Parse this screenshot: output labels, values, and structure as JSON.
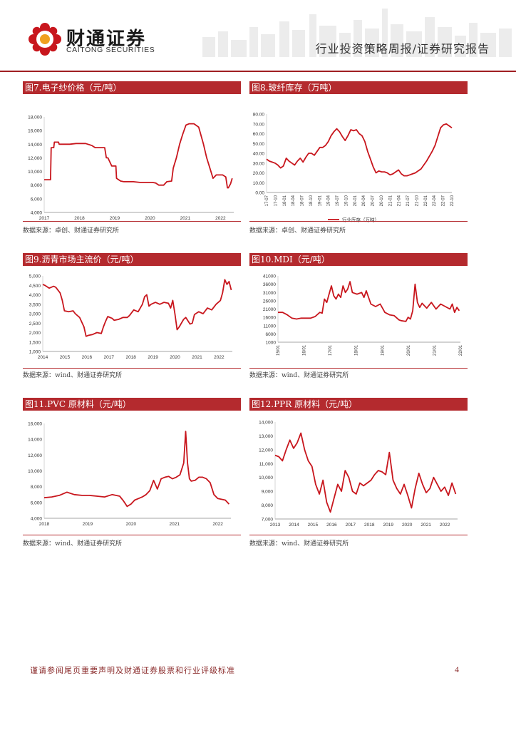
{
  "header": {
    "brand_cn": "财通证券",
    "brand_en": "CAITONG SECURITIES",
    "report_type": "行业投资策略周报/证券研究报告"
  },
  "colors": {
    "accent": "#b42a2e",
    "line": "#c8161d",
    "grid": "#d9d9d9"
  },
  "panels": [
    {
      "title": "图7.电子纱价格（元/吨）",
      "source": "数据来源：卓创、财通证券研究所",
      "chart_data": {
        "type": "line",
        "title": "图7.电子纱价格（元/吨）",
        "x": [
          2017.0,
          2017.2,
          2017.22,
          2017.3,
          2017.32,
          2017.45,
          2017.47,
          2017.6,
          2017.8,
          2018.0,
          2018.3,
          2018.5,
          2018.6,
          2018.9,
          2018.95,
          2019.0,
          2019.1,
          2019.12,
          2019.25,
          2019.27,
          2019.4,
          2019.5,
          2019.8,
          2020.0,
          2020.2,
          2020.4,
          2020.5,
          2020.6,
          2020.75,
          2020.85,
          2021.0,
          2021.05,
          2021.15,
          2021.25,
          2021.35,
          2021.45,
          2021.55,
          2021.7,
          2021.85,
          2022.0,
          2022.1,
          2022.2,
          2022.3,
          2022.4,
          2022.5,
          2022.6,
          2022.7,
          2022.75,
          2022.78,
          2022.85,
          2022.9
        ],
        "values": [
          8800,
          8800,
          13500,
          13500,
          14300,
          14300,
          14000,
          14000,
          14000,
          14100,
          14100,
          13800,
          13500,
          13500,
          12000,
          12000,
          11000,
          10800,
          10800,
          9000,
          8600,
          8500,
          8500,
          8400,
          8400,
          8400,
          8300,
          8000,
          8000,
          8500,
          8600,
          10500,
          12000,
          14000,
          15500,
          16800,
          17000,
          17000,
          16500,
          14000,
          12000,
          10500,
          9000,
          9500,
          9500,
          9500,
          9200,
          7600,
          7600,
          8200,
          9000
        ],
        "xticks": [
          "2017",
          "2018",
          "2019",
          "2020",
          "2021",
          "2022"
        ],
        "yticks": [
          "4,000",
          "6,000",
          "8,000",
          "10,000",
          "12,000",
          "14,000",
          "16,000",
          "18,000"
        ],
        "xlim": [
          2017,
          2022.95
        ],
        "ylim": [
          4000,
          18000
        ]
      }
    },
    {
      "title": "图8.玻纤库存（万吨）",
      "source": "数据来源：卓创、财通证券研究所",
      "legend": "行业库存（万吨）",
      "chart_data": {
        "type": "line",
        "title": "图8.玻纤库存（万吨）",
        "x": [
          0,
          1,
          2,
          3,
          4,
          5,
          6,
          7,
          8,
          9,
          10,
          11,
          12,
          13,
          14,
          15,
          16,
          17,
          18,
          19,
          20,
          21,
          22,
          23,
          24,
          25,
          26,
          27,
          28,
          29,
          30,
          31,
          32,
          33,
          34,
          35,
          36,
          37,
          38,
          39,
          40,
          41,
          42,
          43,
          44,
          45,
          46,
          47,
          48,
          49,
          50,
          51,
          52,
          53,
          54,
          55,
          56,
          57,
          58,
          59,
          60,
          61,
          62,
          63,
          64,
          65,
          66
        ],
        "values": [
          34,
          32,
          31,
          30,
          28,
          25,
          27,
          35,
          32,
          30,
          28,
          32,
          35,
          31,
          36,
          40,
          40,
          38,
          42,
          46,
          46,
          48,
          52,
          58,
          62,
          65,
          62,
          57,
          53,
          58,
          64,
          63,
          64,
          60,
          58,
          52,
          42,
          34,
          26,
          20,
          22,
          21,
          21,
          20,
          18,
          19,
          21,
          23,
          19,
          17,
          17,
          18,
          19,
          20,
          22,
          24,
          28,
          32,
          37,
          42,
          48,
          57,
          66,
          69,
          70,
          68,
          66
        ],
        "xticks": [
          "17-07",
          "17-10",
          "18-01",
          "18-04",
          "18-07",
          "18-10",
          "19-01",
          "19-04",
          "19-07",
          "19-10",
          "20-01",
          "20-04",
          "20-07",
          "20-10",
          "21-01",
          "21-04",
          "21-07",
          "21-10",
          "22-01",
          "22-04",
          "22-07",
          "22-10"
        ],
        "yticks": [
          "0.00",
          "10.00",
          "20.00",
          "30.00",
          "40.00",
          "50.00",
          "60.00",
          "70.00",
          "80.00"
        ],
        "xlim": [
          0,
          66
        ],
        "ylim": [
          0,
          80
        ]
      }
    },
    {
      "title": "图9.沥青市场主流价（元/吨）",
      "source": "数据来源：wind、财通证券研究所",
      "chart_data": {
        "type": "line",
        "title": "图9.沥青市场主流价（元/吨）",
        "x": [
          2014.0,
          2014.1,
          2014.3,
          2014.5,
          2014.6,
          2014.8,
          2014.9,
          2015.0,
          2015.2,
          2015.4,
          2015.5,
          2015.7,
          2015.9,
          2016.0,
          2016.1,
          2016.3,
          2016.5,
          2016.7,
          2016.8,
          2016.9,
          2017.0,
          2017.2,
          2017.3,
          2017.5,
          2017.7,
          2017.9,
          2018.0,
          2018.2,
          2018.4,
          2018.6,
          2018.7,
          2018.8,
          2018.9,
          2019.0,
          2019.2,
          2019.4,
          2019.6,
          2019.8,
          2019.9,
          2020.0,
          2020.1,
          2020.2,
          2020.3,
          2020.5,
          2020.6,
          2020.8,
          2020.9,
          2021.0,
          2021.2,
          2021.4,
          2021.6,
          2021.8,
          2022.0,
          2022.2,
          2022.3,
          2022.4,
          2022.5,
          2022.6,
          2022.7
        ],
        "values": [
          4550,
          4500,
          4350,
          4450,
          4400,
          4100,
          3700,
          3150,
          3100,
          3150,
          3000,
          2800,
          2300,
          1800,
          1850,
          1900,
          2000,
          1950,
          2300,
          2600,
          2850,
          2750,
          2650,
          2700,
          2800,
          2800,
          2900,
          3200,
          3100,
          3500,
          3900,
          4000,
          3400,
          3500,
          3600,
          3500,
          3600,
          3550,
          3300,
          3700,
          3000,
          2150,
          2300,
          2700,
          2800,
          2450,
          2500,
          2950,
          3100,
          3000,
          3300,
          3200,
          3500,
          3700,
          4100,
          4800,
          4550,
          4700,
          4250
        ],
        "xticks": [
          "2014",
          "2015",
          "2016",
          "2017",
          "2018",
          "2019",
          "2020",
          "2021",
          "2022"
        ],
        "yticks": [
          "1,000",
          "1,500",
          "2,000",
          "2,500",
          "3,000",
          "3,500",
          "4,000",
          "4,500",
          "5,000"
        ],
        "xlim": [
          2014,
          2022.75
        ],
        "ylim": [
          1000,
          5000
        ]
      }
    },
    {
      "title": "图10.MDI（元/吨）",
      "source": "数据来源：wind、财通证券研究所",
      "chart_data": {
        "type": "line",
        "title": "图10.MDI（元/吨）",
        "x": [
          2015.0,
          2015.2,
          2015.4,
          2015.6,
          2015.8,
          2016.0,
          2016.2,
          2016.4,
          2016.6,
          2016.8,
          2016.9,
          2017.0,
          2017.1,
          2017.2,
          2017.3,
          2017.4,
          2017.5,
          2017.6,
          2017.7,
          2017.8,
          2017.9,
          2018.0,
          2018.1,
          2018.2,
          2018.4,
          2018.6,
          2018.7,
          2018.8,
          2019.0,
          2019.2,
          2019.4,
          2019.6,
          2019.8,
          2020.0,
          2020.2,
          2020.3,
          2020.5,
          2020.6,
          2020.7,
          2020.8,
          2020.9,
          2021.0,
          2021.1,
          2021.2,
          2021.4,
          2021.6,
          2021.8,
          2022.0,
          2022.2,
          2022.4,
          2022.5,
          2022.6,
          2022.7,
          2022.8
        ],
        "values": [
          19000,
          19000,
          17500,
          15500,
          15000,
          15500,
          15500,
          15500,
          16500,
          19000,
          18500,
          27000,
          25000,
          30000,
          35000,
          29000,
          27000,
          30000,
          28000,
          35000,
          31000,
          33000,
          37500,
          31000,
          30000,
          31000,
          28000,
          32000,
          24000,
          22500,
          24000,
          19000,
          17500,
          17000,
          14500,
          14000,
          13500,
          16000,
          15000,
          20000,
          36000,
          25000,
          22000,
          24500,
          21500,
          25000,
          21000,
          24000,
          22500,
          21000,
          24000,
          19000,
          22000,
          20000
        ],
        "xticks": [
          "15/01",
          "16/01",
          "17/01",
          "18/01",
          "19/01",
          "20/01",
          "21/01",
          "22/01"
        ],
        "yticks": [
          "1000",
          "6000",
          "11000",
          "16000",
          "21000",
          "26000",
          "31000",
          "36000",
          "41000"
        ],
        "xlim": [
          2015,
          2022.85
        ],
        "ylim": [
          1000,
          41000
        ]
      }
    },
    {
      "title": "图11.PVC 原材料（元/吨）",
      "source": "数据来源：wind、财通证券研究所",
      "chart_data": {
        "type": "line",
        "title": "图11.PVC 原材料（元/吨）",
        "x": [
          2018.0,
          2018.2,
          2018.4,
          2018.6,
          2018.8,
          2019.0,
          2019.2,
          2019.4,
          2019.6,
          2019.8,
          2020.0,
          2020.1,
          2020.2,
          2020.3,
          2020.4,
          2020.5,
          2020.6,
          2020.7,
          2020.8,
          2020.9,
          2021.0,
          2021.1,
          2021.2,
          2021.3,
          2021.4,
          2021.5,
          2021.6,
          2021.7,
          2021.75,
          2021.8,
          2021.85,
          2021.9,
          2022.0,
          2022.1,
          2022.2,
          2022.3,
          2022.4,
          2022.5,
          2022.6,
          2022.7,
          2022.8,
          2022.9
        ],
        "values": [
          6600,
          6700,
          6900,
          7300,
          7000,
          6900,
          6900,
          6800,
          6700,
          7000,
          6800,
          6200,
          5500,
          5800,
          6300,
          6500,
          6700,
          7000,
          7500,
          8800,
          7700,
          9000,
          9200,
          9300,
          9000,
          9200,
          9500,
          11000,
          15000,
          11000,
          9000,
          8700,
          8800,
          9200,
          9200,
          9000,
          8500,
          7000,
          6500,
          6400,
          6300,
          5800
        ],
        "xticks": [
          "2018",
          "2019",
          "2020",
          "2021",
          "2022"
        ],
        "yticks": [
          "4,000",
          "6,000",
          "8,000",
          "10,000",
          "12,000",
          "14,000",
          "16,000"
        ],
        "xlim": [
          2018,
          2022.95
        ],
        "ylim": [
          4000,
          16000
        ]
      }
    },
    {
      "title": "图12.PPR 原材料（元/吨）",
      "source": "数据来源：wind、财通证券研究所",
      "chart_data": {
        "type": "line",
        "title": "图12.PPR 原材料（元/吨）",
        "x": [
          2013.0,
          2013.2,
          2013.4,
          2013.6,
          2013.8,
          2014.0,
          2014.2,
          2014.4,
          2014.6,
          2014.8,
          2015.0,
          2015.2,
          2015.4,
          2015.6,
          2015.8,
          2016.0,
          2016.2,
          2016.4,
          2016.6,
          2016.8,
          2017.0,
          2017.2,
          2017.4,
          2017.6,
          2017.8,
          2018.0,
          2018.2,
          2018.4,
          2018.6,
          2018.8,
          2019.0,
          2019.2,
          2019.4,
          2019.6,
          2019.8,
          2020.0,
          2020.2,
          2020.4,
          2020.6,
          2020.8,
          2021.0,
          2021.2,
          2021.4,
          2021.6,
          2021.8,
          2022.0,
          2022.2,
          2022.4,
          2022.6,
          2022.8
        ],
        "values": [
          11600,
          11500,
          11200,
          12000,
          12700,
          12100,
          12500,
          13200,
          12000,
          11200,
          10800,
          9500,
          8800,
          9800,
          8200,
          7500,
          8500,
          9500,
          9000,
          10500,
          10000,
          9000,
          8800,
          9600,
          9400,
          9600,
          9800,
          10200,
          10500,
          10400,
          10200,
          11800,
          9800,
          9200,
          8800,
          9500,
          8700,
          7800,
          9200,
          10300,
          9500,
          8900,
          9200,
          10000,
          9500,
          9000,
          9300,
          8700,
          9600,
          8800
        ],
        "xticks": [
          "2013",
          "2014",
          "2015",
          "2016",
          "2017",
          "2018",
          "2019",
          "2020",
          "2021",
          "2022"
        ],
        "yticks": [
          "7,000",
          "8,000",
          "9,000",
          "10,000",
          "11,000",
          "12,000",
          "13,000",
          "14,000"
        ],
        "xlim": [
          2013,
          2022.9
        ],
        "ylim": [
          7000,
          14000
        ]
      }
    }
  ],
  "footer": {
    "note": "谨请参阅尾页重要声明及财通证券股票和行业评级标准",
    "page": "4"
  }
}
